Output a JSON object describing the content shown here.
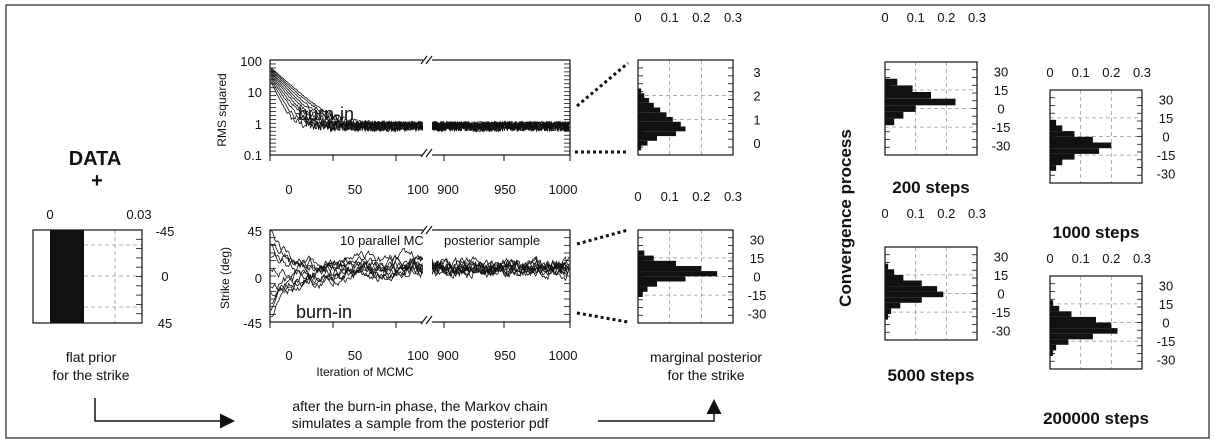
{
  "prior": {
    "title": "DATA",
    "plus": "+",
    "x_ticks": [
      "0",
      "0.03"
    ],
    "y_ticks": [
      "-45",
      "0",
      "45"
    ],
    "caption_1": "flat prior",
    "caption_2": "for the strike"
  },
  "rms_panel": {
    "ylabel": "RMS squared",
    "y_ticks": [
      "100",
      "10",
      "1",
      "0.1"
    ],
    "x_ticks_left": [
      "0",
      "50",
      "100"
    ],
    "x_ticks_right": [
      "900",
      "950",
      "1000"
    ],
    "annotation": "burn-in"
  },
  "strike_panel": {
    "ylabel": "Strike (deg)",
    "y_ticks": [
      "45",
      "0",
      "-45"
    ],
    "x_ticks_left": [
      "0",
      "50",
      "100"
    ],
    "x_ticks_right": [
      "900",
      "950",
      "1000"
    ],
    "xlabel": "Iteration of MCMC",
    "annotation_chains": "10 parallel MC",
    "annotation_posterior": "posterior sample",
    "annotation_burnin": "burn-in"
  },
  "rms_hist": {
    "top_ticks": [
      "0",
      "0.1",
      "0.2",
      "0.3"
    ],
    "right_ticks": [
      "3",
      "2",
      "1",
      "0"
    ],
    "values": [
      0.01,
      0.02,
      0.035,
      0.05,
      0.07,
      0.09,
      0.11,
      0.135,
      0.15,
      0.12,
      0.06,
      0.03,
      0.01
    ]
  },
  "strike_hist": {
    "top_ticks": [
      "0",
      "0.1",
      "0.2",
      "0.3"
    ],
    "right_ticks": [
      "30",
      "15",
      "0",
      "-15",
      "-30"
    ],
    "values": [
      0.02,
      0.05,
      0.12,
      0.2,
      0.25,
      0.15,
      0.06,
      0.03,
      0.015
    ]
  },
  "marginal_caption_1": "marginal posterior",
  "marginal_caption_2": "for the strike",
  "flow_caption_1": "after the burn-in phase, the Markov chain",
  "flow_caption_2": "simulates a sample from the posterior pdf",
  "convergence": {
    "title": "Convergence process",
    "panels": [
      {
        "label": "200 steps",
        "top_ticks": [
          "0",
          "0.1",
          "0.2",
          "0.3"
        ],
        "right_ticks": [
          "30",
          "15",
          "0",
          "-15",
          "-30"
        ],
        "values": [
          0.04,
          0.09,
          0.15,
          0.23,
          0.1,
          0.06,
          0.03
        ]
      },
      {
        "label": "1000 steps",
        "top_ticks": [
          "0",
          "0.1",
          "0.2",
          "0.3"
        ],
        "right_ticks": [
          "30",
          "15",
          "0",
          "-15",
          "-30"
        ],
        "values": [
          0.02,
          0.04,
          0.08,
          0.14,
          0.2,
          0.16,
          0.08,
          0.04,
          0.02
        ]
      },
      {
        "label": "5000 steps",
        "top_ticks": [
          "0",
          "0.1",
          "0.2",
          "0.3"
        ],
        "right_ticks": [
          "30",
          "15",
          "0",
          "-15",
          "-30"
        ],
        "values": [
          0.01,
          0.03,
          0.06,
          0.12,
          0.17,
          0.19,
          0.12,
          0.05,
          0.02,
          0.01
        ]
      },
      {
        "label": "200000 steps",
        "top_ticks": [
          "0",
          "0.1",
          "0.2",
          "0.3"
        ],
        "right_ticks": [
          "30",
          "15",
          "0",
          "-15",
          "-30"
        ],
        "values": [
          0.01,
          0.03,
          0.07,
          0.15,
          0.2,
          0.22,
          0.14,
          0.06,
          0.02,
          0.01
        ]
      }
    ]
  }
}
